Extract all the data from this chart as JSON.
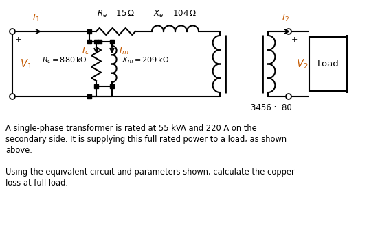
{
  "bg_color": "#ffffff",
  "text_color": "#000000",
  "line_color": "#000000",
  "desc1": "A single-phase transformer is rated at 55 kVA and 220 A on the",
  "desc2": "secondary side. It is supplying this full rated power to a load, as shown",
  "desc3": "above.",
  "desc4": "Using the equivalent circuit and parameters shown, calculate the copper",
  "desc5": "loss at full load.",
  "ratio": "3456 :  80",
  "Re_label": "$R_e = 15\\,\\Omega$",
  "Xe_label": "$X_e = 104\\,\\Omega$",
  "Rc_label": "$R_c = 880\\,\\mathrm{k}\\Omega$",
  "Xm_label": "$X_m = 209\\,\\mathrm{k}\\Omega$",
  "I1_label": "$\\mathbf{\\mathit{I}}_1$",
  "I2_label": "$\\mathbf{\\mathit{I}}_2$",
  "Ic_label": "$\\mathbf{\\mathit{I}}_c$",
  "Im_label": "$\\mathbf{\\mathit{I}}_m$",
  "V1_label": "$\\mathbf{\\mathit{V}}_1$",
  "V2_label": "$\\mathbf{\\mathit{V}}_2$",
  "Load_label": "Load",
  "plus_sign": "+",
  "label_color": "#c8600a"
}
